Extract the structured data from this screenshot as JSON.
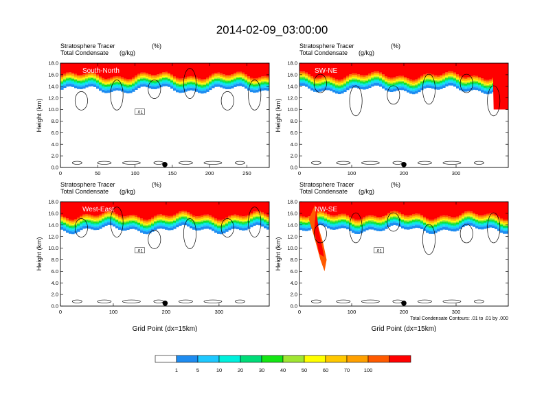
{
  "figure_title": "2014-02-09_03:00:00",
  "colors": {
    "missing": "#ffffff",
    "bins": [
      "#ffffff",
      "#1e8cf0",
      "#1ec8ff",
      "#00f0dc",
      "#00dc78",
      "#14e614",
      "#a0e632",
      "#ffff00",
      "#ffc800",
      "#ffa000",
      "#ff5a00",
      "#ff0000"
    ]
  },
  "chart_data": [
    {
      "type": "heatmap",
      "panel_name": "South-North",
      "subtitle_left": "Stratosphere Tracer",
      "subtitle_left2": "Total Condensate",
      "subtitle_right": "(%)",
      "subtitle_right2": "(g/kg)",
      "ylabel": "Height (km)",
      "xlabel": "",
      "xlim": [
        0,
        280
      ],
      "ylim": [
        0,
        18
      ],
      "xticks": [
        0,
        50,
        100,
        150,
        200,
        250
      ],
      "yticks": [
        "0.0",
        "2.0",
        "4.0",
        "6.0",
        "8.0",
        "10.0",
        "12.0",
        "14.0",
        "16.0",
        "18.0"
      ],
      "tropopause_km": 16.0,
      "contour_label": ".01",
      "marker_x": 140
    },
    {
      "type": "heatmap",
      "panel_name": "SW-NE",
      "subtitle_left": "Stratosphere Tracer",
      "subtitle_left2": "Total Condensate",
      "subtitle_right": "(%)",
      "subtitle_right2": "(g/kg)",
      "ylabel": "Height (km)",
      "xlabel": "",
      "xlim": [
        0,
        400
      ],
      "ylim": [
        0,
        18
      ],
      "xticks": [
        0,
        100,
        200,
        300
      ],
      "yticks": [
        "0.0",
        "2.0",
        "4.0",
        "6.0",
        "8.0",
        "10.0",
        "12.0",
        "14.0",
        "16.0",
        "18.0"
      ],
      "tropopause_km": 16.0,
      "contour_label": "",
      "marker_x": 200
    },
    {
      "type": "heatmap",
      "panel_name": "West-East",
      "subtitle_left": "Stratosphere Tracer",
      "subtitle_left2": "Total Condensate",
      "subtitle_right": "(%)",
      "subtitle_right2": "(g/kg)",
      "ylabel": "Height (km)",
      "xlabel": "Grid Point (dx=15km)",
      "xlim": [
        0,
        395
      ],
      "ylim": [
        0,
        18
      ],
      "xticks": [
        0,
        100,
        200,
        300
      ],
      "yticks": [
        "0.0",
        "2.0",
        "4.0",
        "6.0",
        "8.0",
        "10.0",
        "12.0",
        "14.0",
        "16.0",
        "18.0"
      ],
      "tropopause_km": 15.8,
      "contour_label": ".01",
      "marker_x": 198
    },
    {
      "type": "heatmap",
      "panel_name": "NW-SE",
      "subtitle_left": "Stratosphere Tracer",
      "subtitle_left2": "Total Condensate",
      "subtitle_right": "(%)",
      "subtitle_right2": "(g/kg)",
      "ylabel": "Height (km)",
      "xlabel": "Grid Point (dx=15km)",
      "xlim": [
        0,
        400
      ],
      "ylim": [
        0,
        18
      ],
      "xticks": [
        0,
        100,
        200,
        300
      ],
      "yticks": [
        "0.0",
        "2.0",
        "4.0",
        "6.0",
        "8.0",
        "10.0",
        "12.0",
        "14.0",
        "16.0",
        "18.0"
      ],
      "tropopause_km": 15.8,
      "contour_label": ".01",
      "marker_x": 200,
      "footnote": "Total Condensate Contours: .01 to .01 by .000"
    }
  ],
  "colorbar": {
    "labels": [
      "1",
      "5",
      "10",
      "20",
      "30",
      "40",
      "50",
      "60",
      "70",
      "100"
    ],
    "colors": [
      "#ffffff",
      "#1e8cf0",
      "#1ec8ff",
      "#00f0dc",
      "#00dc78",
      "#14e614",
      "#a0e632",
      "#ffff00",
      "#ffc800",
      "#ffa000",
      "#ff5a00",
      "#ff0000"
    ]
  }
}
